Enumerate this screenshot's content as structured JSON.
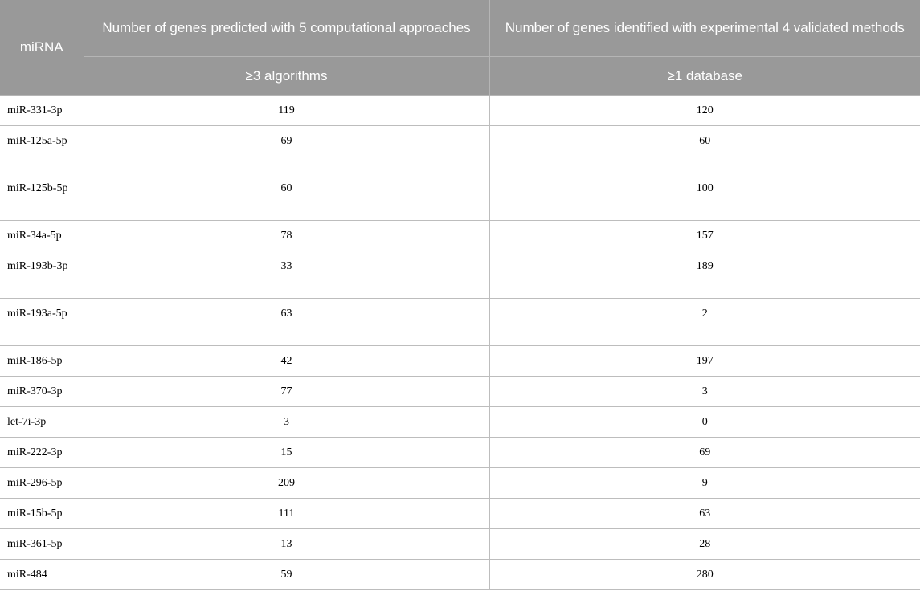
{
  "header": {
    "mirna": "miRNA",
    "computational": "Number of genes predicted with 5 computational approaches",
    "experimental": "Number of genes identified with experimental 4 validated methods",
    "algorithms": "≥3 algorithms",
    "database": "≥1 database"
  },
  "rows": [
    {
      "mirna": "miR-331-3p",
      "predicted": "119",
      "identified": "120"
    },
    {
      "mirna": "miR-125a-5p",
      "predicted": "69",
      "identified": "60"
    },
    {
      "mirna": "miR-125b-5p",
      "predicted": "60",
      "identified": "100"
    },
    {
      "mirna": "miR-34a-5p",
      "predicted": "78",
      "identified": "157"
    },
    {
      "mirna": "miR-193b-3p",
      "predicted": "33",
      "identified": "189"
    },
    {
      "mirna": "miR-193a-5p",
      "predicted": "63",
      "identified": "2"
    },
    {
      "mirna": "miR-186-5p",
      "predicted": "42",
      "identified": "197"
    },
    {
      "mirna": "miR-370-3p",
      "predicted": "77",
      "identified": "3"
    },
    {
      "mirna": "let-7i-3p",
      "predicted": "3",
      "identified": "0"
    },
    {
      "mirna": "miR-222-3p",
      "predicted": "15",
      "identified": "69"
    },
    {
      "mirna": "miR-296-5p",
      "predicted": "209",
      "identified": "9"
    },
    {
      "mirna": "miR-15b-5p",
      "predicted": "111",
      "identified": "63"
    },
    {
      "mirna": "miR-361-5p",
      "predicted": "13",
      "identified": "28"
    },
    {
      "mirna": "miR-484",
      "predicted": "59",
      "identified": "280"
    }
  ]
}
